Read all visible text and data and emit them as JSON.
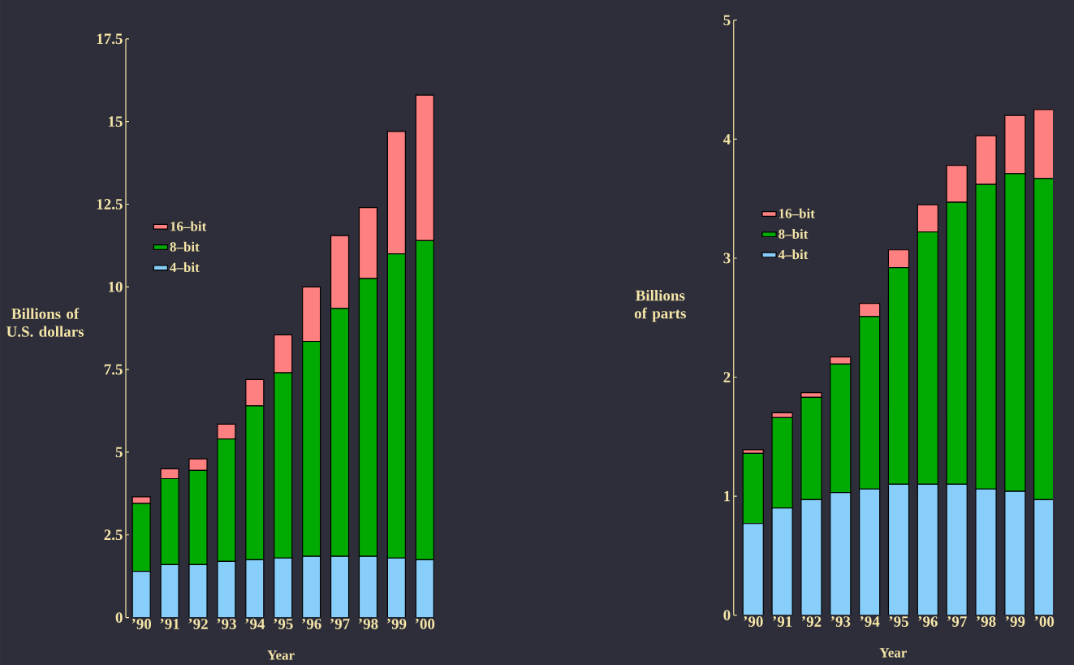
{
  "chart_data": [
    {
      "type": "bar",
      "stacked": true,
      "xlabel": "Year",
      "ylabel": "Billions of U.S. dollars",
      "legend": "left",
      "categories": [
        "’90",
        "’91",
        "’92",
        "’93",
        "’94",
        "’95",
        "’96",
        "’97",
        "’98",
        "’99",
        "’00"
      ],
      "ylim": [
        0,
        17.5
      ],
      "yticks": [
        0,
        2.5,
        5,
        7.5,
        10,
        12.5,
        15,
        17.5
      ],
      "series": [
        {
          "name": "4–bit",
          "color": "#87cefa",
          "values": [
            1.4,
            1.6,
            1.6,
            1.7,
            1.75,
            1.8,
            1.85,
            1.85,
            1.85,
            1.8,
            1.75
          ]
        },
        {
          "name": "8–bit",
          "color": "#00aa00",
          "values": [
            2.05,
            2.6,
            2.85,
            3.7,
            4.65,
            5.6,
            6.5,
            7.5,
            8.4,
            9.2,
            9.65
          ]
        },
        {
          "name": "16–bit",
          "color": "#ff8080",
          "values": [
            0.2,
            0.3,
            0.35,
            0.45,
            0.8,
            1.15,
            1.65,
            2.2,
            2.15,
            3.7,
            4.4
          ]
        }
      ]
    },
    {
      "type": "bar",
      "stacked": true,
      "xlabel": "Year",
      "ylabel": "Billions of parts",
      "legend": "left",
      "categories": [
        "’90",
        "’91",
        "’92",
        "’93",
        "’94",
        "’95",
        "’96",
        "’97",
        "’98",
        "’99",
        "’00"
      ],
      "ylim": [
        0,
        5
      ],
      "yticks": [
        0,
        1,
        2,
        3,
        4,
        5
      ],
      "series": [
        {
          "name": "4–bit",
          "color": "#87cefa",
          "values": [
            0.77,
            0.9,
            0.97,
            1.03,
            1.06,
            1.1,
            1.1,
            1.1,
            1.06,
            1.04,
            0.97
          ]
        },
        {
          "name": "8–bit",
          "color": "#00aa00",
          "values": [
            0.59,
            0.76,
            0.86,
            1.08,
            1.45,
            1.82,
            2.12,
            2.37,
            2.56,
            2.67,
            2.7
          ]
        },
        {
          "name": "16–bit",
          "color": "#ff8080",
          "values": [
            0.03,
            0.04,
            0.04,
            0.06,
            0.11,
            0.15,
            0.23,
            0.31,
            0.41,
            0.49,
            0.58
          ]
        }
      ]
    }
  ]
}
